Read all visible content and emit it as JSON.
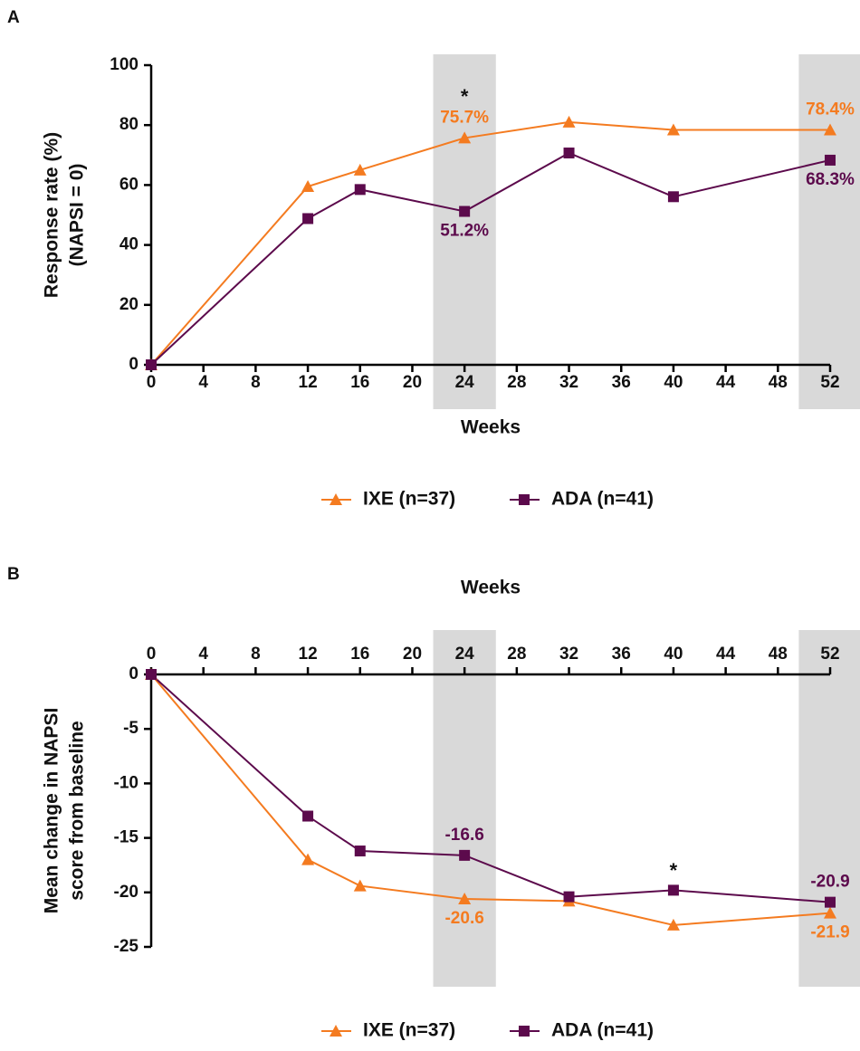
{
  "chart_data": [
    {
      "type": "line",
      "label": "A",
      "xlabel": "Weeks",
      "ylabel": [
        "Response rate (%)",
        "(NAPSI = 0)"
      ],
      "x": [
        0,
        12,
        16,
        24,
        32,
        40,
        52
      ],
      "series": [
        {
          "name": "IXE (n=37)",
          "color": "#f47b20",
          "marker": "triangle",
          "values": [
            0,
            59.5,
            65,
            75.7,
            81,
            78.4,
            78.4
          ],
          "value_labels": [
            null,
            null,
            null,
            "75.7%",
            null,
            null,
            "78.4%"
          ]
        },
        {
          "name": "ADA (n=41)",
          "color": "#5c0a4c",
          "marker": "square",
          "values": [
            0,
            48.8,
            58.5,
            51.2,
            70.7,
            56.1,
            68.3
          ],
          "value_labels": [
            null,
            null,
            null,
            "51.2%",
            null,
            null,
            "68.3%"
          ]
        }
      ],
      "xlim": [
        0,
        52
      ],
      "xticks": [
        0,
        4,
        8,
        12,
        16,
        20,
        24,
        28,
        32,
        36,
        40,
        44,
        48,
        52
      ],
      "ylim": [
        0,
        100
      ],
      "yticks": [
        0,
        20,
        40,
        60,
        80,
        100
      ],
      "x_axis_side": "bottom",
      "grid": false,
      "highlights": [
        [
          21.6,
          26.4
        ],
        [
          49.6,
          54.3
        ]
      ],
      "annotations": [
        {
          "text": "*",
          "x": 24
        }
      ]
    },
    {
      "type": "line",
      "label": "B",
      "xlabel": "Weeks",
      "ylabel": [
        "Mean change in NAPSI",
        "score from baseline"
      ],
      "x": [
        0,
        12,
        16,
        24,
        32,
        40,
        52
      ],
      "series": [
        {
          "name": "IXE (n=37)",
          "color": "#f47b20",
          "marker": "triangle",
          "values": [
            0,
            -17,
            -19.4,
            -20.6,
            -20.8,
            -23,
            -21.9
          ],
          "value_labels": [
            null,
            null,
            null,
            "-20.6",
            null,
            null,
            "-21.9"
          ]
        },
        {
          "name": "ADA (n=41)",
          "color": "#5c0a4c",
          "marker": "square",
          "values": [
            0,
            -13,
            -16.2,
            -16.6,
            -20.4,
            -19.8,
            -20.9
          ],
          "value_labels": [
            null,
            null,
            null,
            "-16.6",
            null,
            null,
            "-20.9"
          ]
        }
      ],
      "xlim": [
        0,
        52
      ],
      "xticks": [
        0,
        4,
        8,
        12,
        16,
        20,
        24,
        28,
        32,
        36,
        40,
        44,
        48,
        52
      ],
      "ylim": [
        -25,
        0
      ],
      "yticks": [
        -25,
        -20,
        -15,
        -10,
        -5,
        0
      ],
      "x_axis_side": "top",
      "grid": false,
      "highlights": [
        [
          21.6,
          26.4
        ],
        [
          49.6,
          54.3
        ]
      ],
      "annotations": [
        {
          "text": "*",
          "x": 40
        }
      ]
    }
  ]
}
